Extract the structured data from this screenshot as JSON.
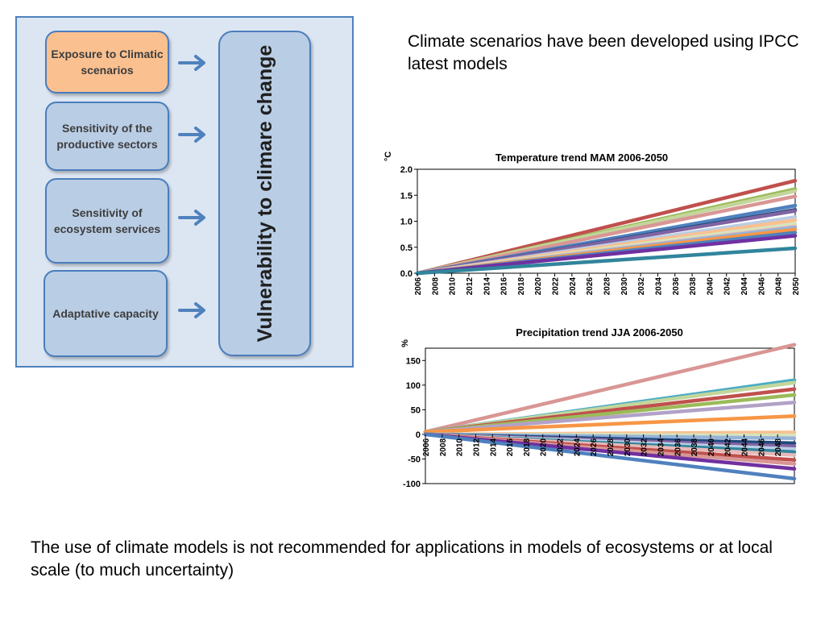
{
  "diagram": {
    "factors": [
      {
        "label": "Exposure to Climatic scenarios",
        "highlight": true
      },
      {
        "label": "Sensitivity of the productive sectors",
        "highlight": false
      },
      {
        "label": "Sensitivity of ecosystem services",
        "highlight": false
      },
      {
        "label": "Adaptative capacity",
        "highlight": false
      }
    ],
    "target": "Vulnerability to climare change"
  },
  "text": {
    "intro": "Climate scenarios have been developed using IPCC latest models",
    "conclusion": "The use of climate models is not recommended for applications in models of ecosystems or at local scale (to much uncertainty)"
  },
  "chart_data": [
    {
      "type": "line",
      "title": "Temperature trend MAM 2006-2050",
      "ylabel": "°C",
      "xlabel": "",
      "ylim": [
        0,
        2.0
      ],
      "yticks": [
        "0.0",
        "0.5",
        "1.0",
        "1.5",
        "2.0"
      ],
      "xticks": [
        "2006",
        "2008",
        "2010",
        "2012",
        "2014",
        "2016",
        "2018",
        "2020",
        "2022",
        "2024",
        "2026",
        "2028",
        "2030",
        "2032",
        "2034",
        "2036",
        "2038",
        "2040",
        "2042",
        "2044",
        "2046",
        "2048",
        "2050"
      ],
      "x_range": [
        2006,
        2050
      ],
      "grid": false,
      "series": [
        {
          "color": "#c0504d",
          "start": 0,
          "end": 1.78
        },
        {
          "color": "#9bbb59",
          "start": 0,
          "end": 1.62
        },
        {
          "color": "#c3d69b",
          "start": 0,
          "end": 1.58
        },
        {
          "color": "#d99694",
          "start": 0,
          "end": 1.48
        },
        {
          "color": "#4f81bd",
          "start": 0,
          "end": 1.3
        },
        {
          "color": "#1f497d",
          "start": 0,
          "end": 1.22
        },
        {
          "color": "#8064a2",
          "start": 0,
          "end": 1.2
        },
        {
          "color": "#b9cde5",
          "start": 0,
          "end": 1.08
        },
        {
          "color": "#fac090",
          "start": 0,
          "end": 1.02
        },
        {
          "color": "#d7e4bd",
          "start": 0,
          "end": 0.95
        },
        {
          "color": "#e6b9b8",
          "start": 0,
          "end": 0.9
        },
        {
          "color": "#95b3d7",
          "start": 0,
          "end": 0.88
        },
        {
          "color": "#f79646",
          "start": 0,
          "end": 0.84
        },
        {
          "color": "#4f81bd",
          "start": 0,
          "end": 0.78
        },
        {
          "color": "#7030a0",
          "start": 0,
          "end": 0.72
        },
        {
          "color": "#31859c",
          "start": 0,
          "end": 0.48
        }
      ]
    },
    {
      "type": "line",
      "title": "Precipitation trend JJA 2006-2050",
      "ylabel": "%",
      "xlabel": "",
      "ylim": [
        -100,
        175
      ],
      "yticks": [
        "-100",
        "-50",
        "0",
        "50",
        "100",
        "150"
      ],
      "xticks": [
        "2006",
        "2008",
        "2010",
        "2012",
        "2014",
        "2016",
        "2018",
        "2020",
        "2022",
        "2024",
        "2026",
        "2028",
        "2030",
        "2032",
        "2034",
        "2036",
        "2038",
        "2040",
        "2042",
        "2044",
        "2046",
        "2048"
      ],
      "x_range": [
        2006,
        2050
      ],
      "grid": false,
      "series": [
        {
          "color": "#d99694",
          "start": 5,
          "end": 182
        },
        {
          "color": "#4bacc6",
          "start": 5,
          "end": 110
        },
        {
          "color": "#c3d69b",
          "start": 5,
          "end": 105
        },
        {
          "color": "#c0504d",
          "start": 5,
          "end": 92
        },
        {
          "color": "#9bbb59",
          "start": 5,
          "end": 80
        },
        {
          "color": "#b2a1c7",
          "start": 5,
          "end": 65
        },
        {
          "color": "#f79646",
          "start": 5,
          "end": 37
        },
        {
          "color": "#fac090",
          "start": 0,
          "end": 4
        },
        {
          "color": "#d7e4bd",
          "start": 0,
          "end": -2
        },
        {
          "color": "#95b3d7",
          "start": 0,
          "end": -8
        },
        {
          "color": "#1f497d",
          "start": 0,
          "end": -18
        },
        {
          "color": "#8064a2",
          "start": 0,
          "end": -24
        },
        {
          "color": "#b9cde5",
          "start": 0,
          "end": -30
        },
        {
          "color": "#31859c",
          "start": 0,
          "end": -36
        },
        {
          "color": "#e6b9b8",
          "start": 0,
          "end": -42
        },
        {
          "color": "#c0504d",
          "start": 0,
          "end": -52
        },
        {
          "color": "#d99694",
          "start": 0,
          "end": -60
        },
        {
          "color": "#7030a0",
          "start": 0,
          "end": -70
        },
        {
          "color": "#4f81bd",
          "start": 0,
          "end": -90
        }
      ]
    }
  ]
}
